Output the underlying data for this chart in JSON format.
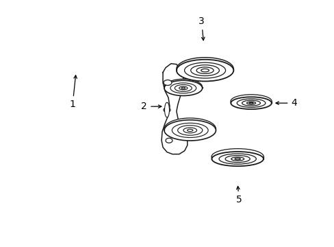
{
  "background_color": "#ffffff",
  "line_color": "#1a1a1a",
  "belt_lw": 1.4,
  "label_fontsize": 10,
  "figsize": [
    4.89,
    3.6
  ],
  "dpi": 100,
  "xlim": [
    0,
    489
  ],
  "ylim": [
    0,
    360
  ]
}
